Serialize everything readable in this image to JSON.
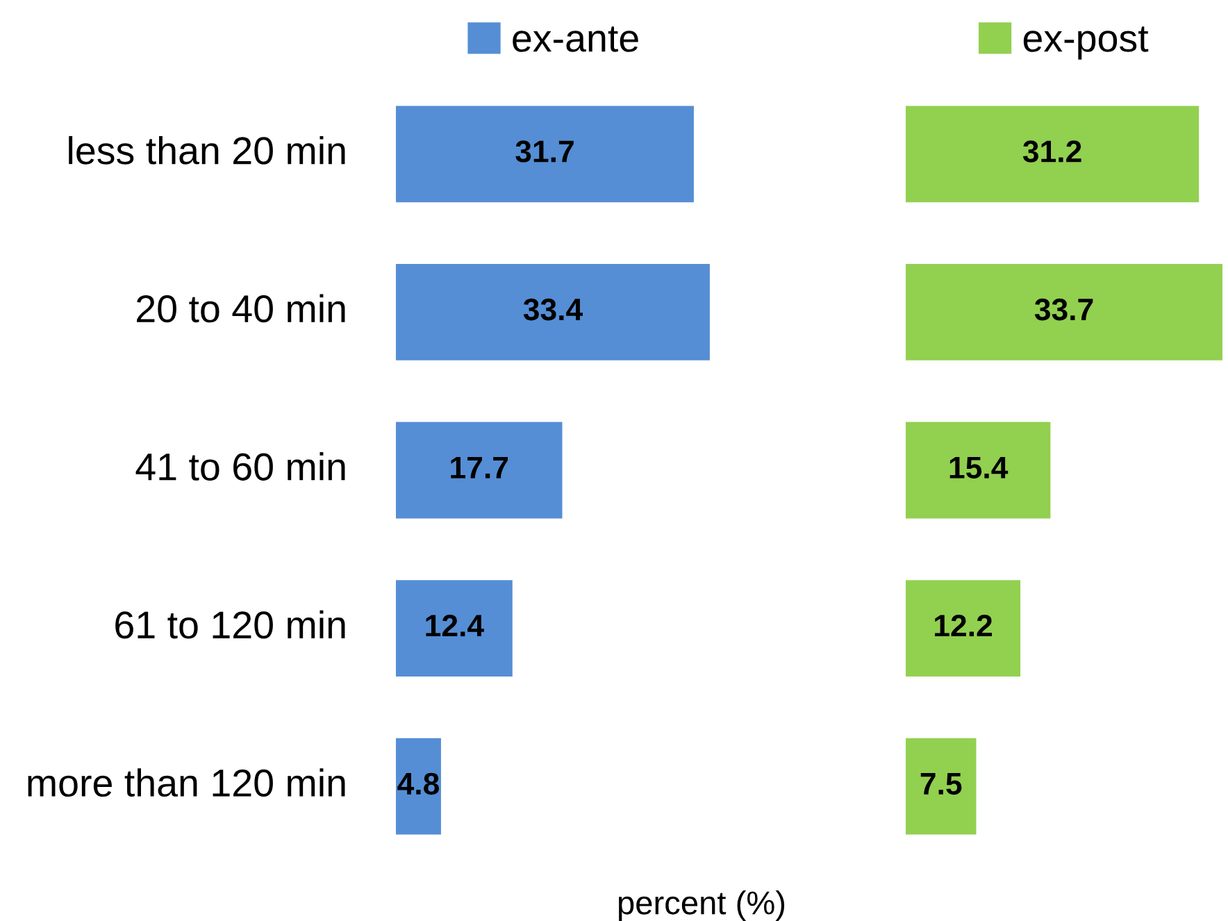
{
  "chart_data": [
    {
      "type": "bar",
      "orientation": "horizontal",
      "categories": [
        "less than 20 min",
        "20 to 40 min",
        "41 to 60 min",
        "61 to 120 min",
        "more than 120 min"
      ],
      "xlabel": "percent (%)",
      "series": [
        {
          "name": "ex-ante",
          "color": "#558ed5",
          "values": [
            31.7,
            33.4,
            17.7,
            12.4,
            4.8
          ]
        }
      ],
      "data_labels": true,
      "legend": "top"
    },
    {
      "type": "bar",
      "orientation": "horizontal",
      "categories": [
        null,
        null,
        null,
        null,
        null
      ],
      "series": [
        {
          "name": "ex-post",
          "color": "#92d050",
          "values": [
            31.2,
            33.7,
            15.4,
            12.2,
            7.5
          ]
        }
      ],
      "data_labels": true,
      "legend": "top"
    }
  ]
}
